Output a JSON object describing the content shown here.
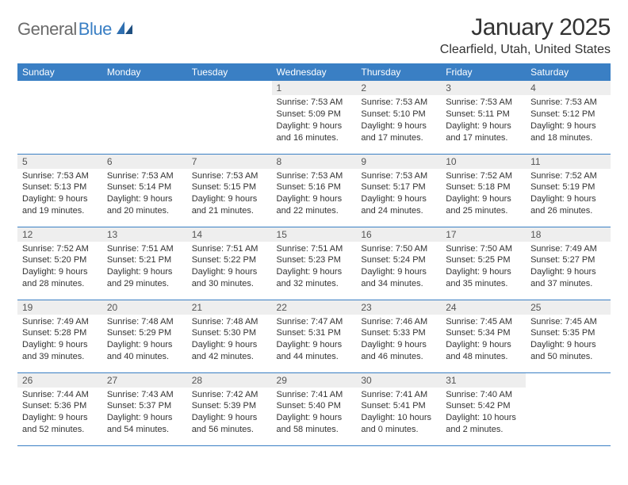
{
  "logo": {
    "text1": "General",
    "text2": "Blue",
    "icon_color": "#2f6fb0"
  },
  "title": "January 2025",
  "location": "Clearfield, Utah, United States",
  "colors": {
    "header_bg": "#3a7fc4",
    "header_fg": "#ffffff",
    "daynum_bg": "#eeeeee",
    "border": "#3a7fc4"
  },
  "weekdays": [
    "Sunday",
    "Monday",
    "Tuesday",
    "Wednesday",
    "Thursday",
    "Friday",
    "Saturday"
  ],
  "weeks": [
    [
      null,
      null,
      null,
      {
        "n": "1",
        "sr": "7:53 AM",
        "ss": "5:09 PM",
        "dl": "9 hours and 16 minutes."
      },
      {
        "n": "2",
        "sr": "7:53 AM",
        "ss": "5:10 PM",
        "dl": "9 hours and 17 minutes."
      },
      {
        "n": "3",
        "sr": "7:53 AM",
        "ss": "5:11 PM",
        "dl": "9 hours and 17 minutes."
      },
      {
        "n": "4",
        "sr": "7:53 AM",
        "ss": "5:12 PM",
        "dl": "9 hours and 18 minutes."
      }
    ],
    [
      {
        "n": "5",
        "sr": "7:53 AM",
        "ss": "5:13 PM",
        "dl": "9 hours and 19 minutes."
      },
      {
        "n": "6",
        "sr": "7:53 AM",
        "ss": "5:14 PM",
        "dl": "9 hours and 20 minutes."
      },
      {
        "n": "7",
        "sr": "7:53 AM",
        "ss": "5:15 PM",
        "dl": "9 hours and 21 minutes."
      },
      {
        "n": "8",
        "sr": "7:53 AM",
        "ss": "5:16 PM",
        "dl": "9 hours and 22 minutes."
      },
      {
        "n": "9",
        "sr": "7:53 AM",
        "ss": "5:17 PM",
        "dl": "9 hours and 24 minutes."
      },
      {
        "n": "10",
        "sr": "7:52 AM",
        "ss": "5:18 PM",
        "dl": "9 hours and 25 minutes."
      },
      {
        "n": "11",
        "sr": "7:52 AM",
        "ss": "5:19 PM",
        "dl": "9 hours and 26 minutes."
      }
    ],
    [
      {
        "n": "12",
        "sr": "7:52 AM",
        "ss": "5:20 PM",
        "dl": "9 hours and 28 minutes."
      },
      {
        "n": "13",
        "sr": "7:51 AM",
        "ss": "5:21 PM",
        "dl": "9 hours and 29 minutes."
      },
      {
        "n": "14",
        "sr": "7:51 AM",
        "ss": "5:22 PM",
        "dl": "9 hours and 30 minutes."
      },
      {
        "n": "15",
        "sr": "7:51 AM",
        "ss": "5:23 PM",
        "dl": "9 hours and 32 minutes."
      },
      {
        "n": "16",
        "sr": "7:50 AM",
        "ss": "5:24 PM",
        "dl": "9 hours and 34 minutes."
      },
      {
        "n": "17",
        "sr": "7:50 AM",
        "ss": "5:25 PM",
        "dl": "9 hours and 35 minutes."
      },
      {
        "n": "18",
        "sr": "7:49 AM",
        "ss": "5:27 PM",
        "dl": "9 hours and 37 minutes."
      }
    ],
    [
      {
        "n": "19",
        "sr": "7:49 AM",
        "ss": "5:28 PM",
        "dl": "9 hours and 39 minutes."
      },
      {
        "n": "20",
        "sr": "7:48 AM",
        "ss": "5:29 PM",
        "dl": "9 hours and 40 minutes."
      },
      {
        "n": "21",
        "sr": "7:48 AM",
        "ss": "5:30 PM",
        "dl": "9 hours and 42 minutes."
      },
      {
        "n": "22",
        "sr": "7:47 AM",
        "ss": "5:31 PM",
        "dl": "9 hours and 44 minutes."
      },
      {
        "n": "23",
        "sr": "7:46 AM",
        "ss": "5:33 PM",
        "dl": "9 hours and 46 minutes."
      },
      {
        "n": "24",
        "sr": "7:45 AM",
        "ss": "5:34 PM",
        "dl": "9 hours and 48 minutes."
      },
      {
        "n": "25",
        "sr": "7:45 AM",
        "ss": "5:35 PM",
        "dl": "9 hours and 50 minutes."
      }
    ],
    [
      {
        "n": "26",
        "sr": "7:44 AM",
        "ss": "5:36 PM",
        "dl": "9 hours and 52 minutes."
      },
      {
        "n": "27",
        "sr": "7:43 AM",
        "ss": "5:37 PM",
        "dl": "9 hours and 54 minutes."
      },
      {
        "n": "28",
        "sr": "7:42 AM",
        "ss": "5:39 PM",
        "dl": "9 hours and 56 minutes."
      },
      {
        "n": "29",
        "sr": "7:41 AM",
        "ss": "5:40 PM",
        "dl": "9 hours and 58 minutes."
      },
      {
        "n": "30",
        "sr": "7:41 AM",
        "ss": "5:41 PM",
        "dl": "10 hours and 0 minutes."
      },
      {
        "n": "31",
        "sr": "7:40 AM",
        "ss": "5:42 PM",
        "dl": "10 hours and 2 minutes."
      },
      null
    ]
  ],
  "labels": {
    "sunrise": "Sunrise: ",
    "sunset": "Sunset: ",
    "daylight": "Daylight: "
  }
}
